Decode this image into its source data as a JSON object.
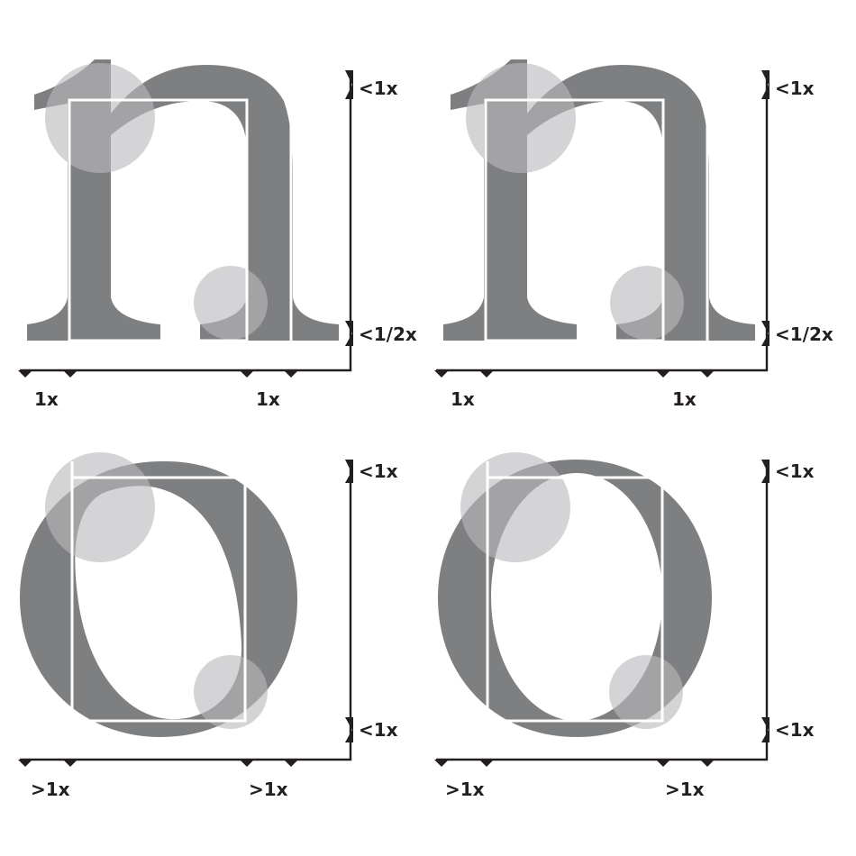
{
  "panels": [
    {
      "name": "panel-n-left",
      "glyph": "n",
      "side_labels": {
        "top": "<1x",
        "bottom": "<1/2x"
      },
      "bottom_labels": {
        "left": "1x",
        "right": "1x"
      }
    },
    {
      "name": "panel-n-right",
      "glyph": "n",
      "side_labels": {
        "top": "<1x",
        "bottom": "<1/2x"
      },
      "bottom_labels": {
        "left": "1x",
        "right": "1x"
      }
    },
    {
      "name": "panel-o-left",
      "glyph": "o",
      "side_labels": {
        "top": "<1x",
        "bottom": "<1x"
      },
      "bottom_labels": {
        "left": ">1x",
        "right": ">1x"
      }
    },
    {
      "name": "panel-o-right",
      "glyph": "o",
      "side_labels": {
        "top": "<1x",
        "bottom": "<1x"
      },
      "bottom_labels": {
        "left": ">1x",
        "right": ">1x"
      }
    }
  ],
  "colors": {
    "glyph": "#7e7f81",
    "circle": "#b9babd",
    "guide": "#ffffff",
    "axis": "#231f20"
  }
}
